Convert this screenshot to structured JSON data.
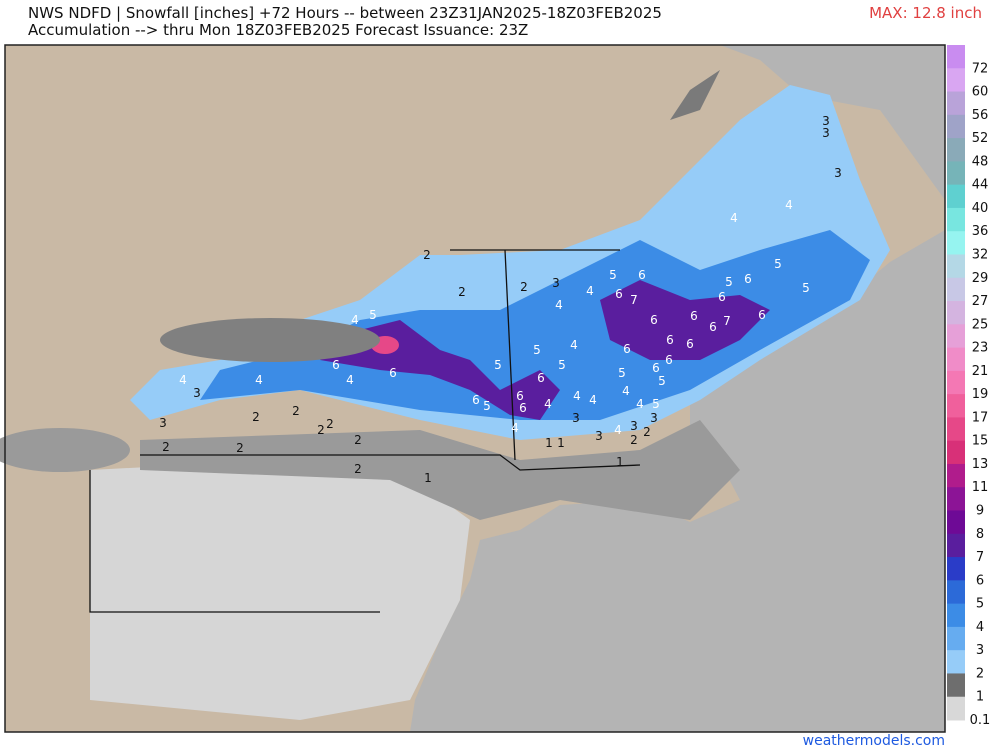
{
  "header": {
    "title_line1": "NWS NDFD | Snowfall [inches] +72 Hours -- between 23Z31JAN2025-18Z03FEB2025",
    "title_line2": "Accumulation --> thru Mon 18Z03FEB2025   Forecast Issuance: 23Z",
    "max_label": "MAX: 12.8 inch"
  },
  "legend": {
    "levels": [
      {
        "value": 72,
        "color": "#c98cf0"
      },
      {
        "value": 60,
        "color": "#d9a6f2"
      },
      {
        "value": 56,
        "color": "#b9a3d9"
      },
      {
        "value": 52,
        "color": "#9fa3c8"
      },
      {
        "value": 48,
        "color": "#8aaab8"
      },
      {
        "value": 44,
        "color": "#76b4b8"
      },
      {
        "value": 40,
        "color": "#5fd0d0"
      },
      {
        "value": 36,
        "color": "#78e6e0"
      },
      {
        "value": 32,
        "color": "#96f4f0"
      },
      {
        "value": 29,
        "color": "#b4d8e6"
      },
      {
        "value": 27,
        "color": "#c8c8e6"
      },
      {
        "value": 25,
        "color": "#d4b4e0"
      },
      {
        "value": 23,
        "color": "#e6a0d8"
      },
      {
        "value": 21,
        "color": "#f08cc8"
      },
      {
        "value": 19,
        "color": "#f478b4"
      },
      {
        "value": 17,
        "color": "#f0609c"
      },
      {
        "value": 15,
        "color": "#e64888"
      },
      {
        "value": 13,
        "color": "#d83078"
      },
      {
        "value": 11,
        "color": "#b01c8c"
      },
      {
        "value": 9,
        "color": "#8c1496"
      },
      {
        "value": 8,
        "color": "#6e0a96"
      },
      {
        "value": 7,
        "color": "#5a1e9e"
      },
      {
        "value": 6,
        "color": "#2a3cc8"
      },
      {
        "value": 5,
        "color": "#2c6ad8"
      },
      {
        "value": 4,
        "color": "#3c8ce6"
      },
      {
        "value": 3,
        "color": "#66acf0"
      },
      {
        "value": 2,
        "color": "#96ccf8"
      },
      {
        "value": 1,
        "color": "#6e6e6e"
      },
      {
        "value": 0.1,
        "color": "#d8d8d8"
      }
    ]
  },
  "map": {
    "labels": [
      2,
      2,
      2,
      3,
      4,
      4,
      6,
      7,
      5,
      6,
      5,
      4,
      6,
      4,
      6,
      5,
      5,
      4,
      5,
      6,
      6,
      6,
      6,
      5,
      4,
      4,
      4,
      4,
      3,
      3,
      3,
      4,
      5,
      4,
      6,
      6,
      6,
      6,
      6,
      5,
      4,
      5,
      2,
      2,
      3,
      6,
      6,
      6,
      7,
      6,
      6,
      5,
      6,
      5,
      5,
      4,
      4,
      3,
      3,
      3,
      4,
      4,
      3,
      3,
      2,
      2,
      2,
      2,
      2,
      2,
      2,
      2,
      1,
      1,
      1,
      1
    ]
  },
  "footer": {
    "source": "weathermodels.com"
  }
}
